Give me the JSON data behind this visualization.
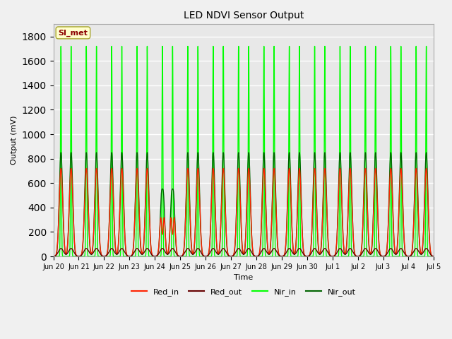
{
  "title": "LED NDVI Sensor Output",
  "xlabel": "Time",
  "ylabel": "Output (mV)",
  "ylim": [
    0,
    1900
  ],
  "yticks": [
    0,
    200,
    400,
    600,
    800,
    1000,
    1200,
    1400,
    1600,
    1800
  ],
  "background_color": "#f0f0f0",
  "plot_bg_color": "#e8e8e8",
  "grid_color": "#ffffff",
  "series": {
    "Red_in": {
      "color": "#ff2200",
      "lw": 1.0
    },
    "Red_out": {
      "color": "#660000",
      "lw": 1.0
    },
    "Nir_in": {
      "color": "#00ff00",
      "lw": 1.0
    },
    "Nir_out": {
      "color": "#006400",
      "lw": 1.0
    }
  },
  "tick_labels": [
    "Jun 20",
    "Jun 21",
    "Jun 22",
    "Jun 23",
    "Jun 24",
    "Jun 25",
    "Jun 26",
    "Jun 27",
    "Jun 28",
    "Jun 29",
    "Jun 30",
    "Jul 1",
    "Jul 2",
    "Jul 3",
    "Jul 4",
    "Jul 5"
  ],
  "annotation_text": "SI_met",
  "legend_labels": [
    "Red_in",
    "Red_out",
    "Nir_in",
    "Nir_out"
  ]
}
